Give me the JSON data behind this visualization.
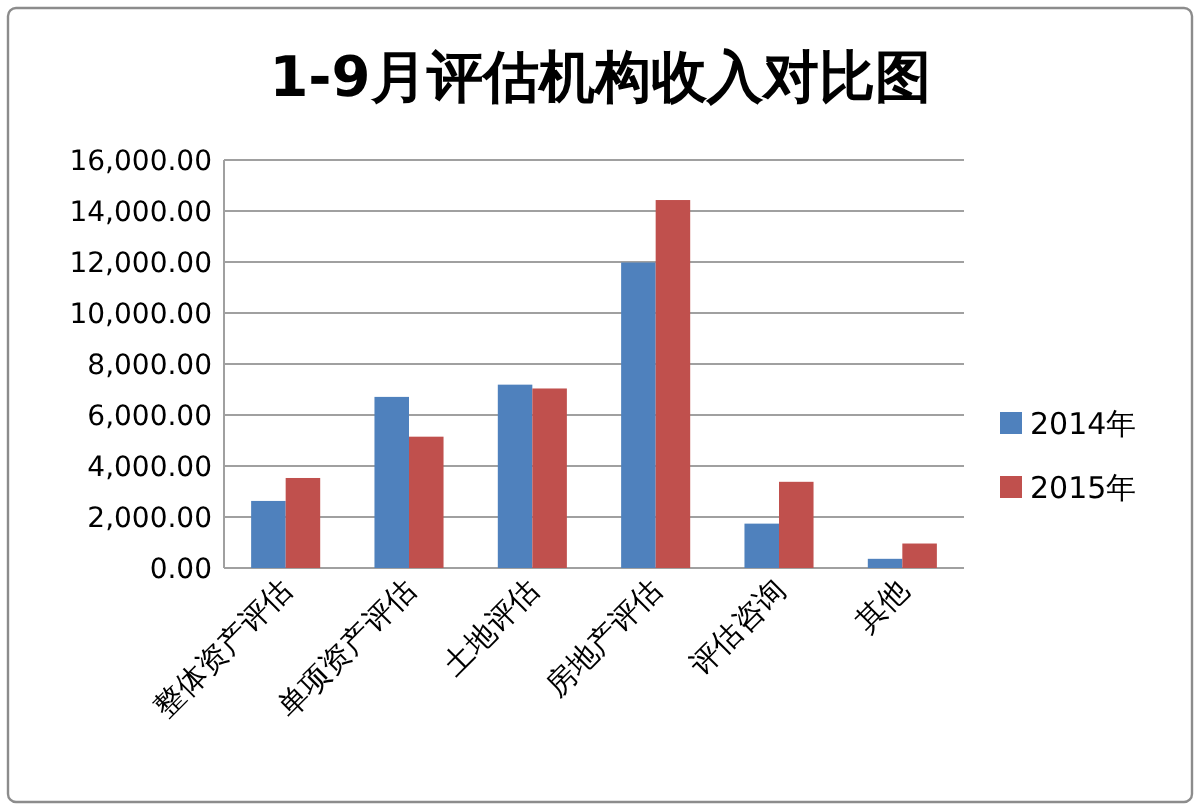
{
  "chart_data": {
    "type": "bar",
    "title": "1-9月评估机构收入对比图",
    "categories": [
      "整体资产评估",
      "单项资产评估",
      "土地评估",
      "房地产评估",
      "评估咨询",
      "其他"
    ],
    "series": [
      {
        "name": "2014年",
        "color": "#4f81bd",
        "values": [
          2630,
          6710,
          7190,
          11980,
          1740,
          360
        ]
      },
      {
        "name": "2015年",
        "color": "#c0504d",
        "values": [
          3530,
          5150,
          7040,
          14430,
          3380,
          960
        ]
      }
    ],
    "ylim": [
      0,
      16000
    ],
    "yticks": [
      {
        "value": 0,
        "label": "0.00"
      },
      {
        "value": 2000,
        "label": "2,000.00"
      },
      {
        "value": 4000,
        "label": "4,000.00"
      },
      {
        "value": 6000,
        "label": "6,000.00"
      },
      {
        "value": 8000,
        "label": "8,000.00"
      },
      {
        "value": 10000,
        "label": "10,000.00"
      },
      {
        "value": 12000,
        "label": "12,000.00"
      },
      {
        "value": 14000,
        "label": "14,000.00"
      },
      {
        "value": 16000,
        "label": "16,000.00"
      }
    ],
    "grid": "y",
    "legend": "right"
  }
}
